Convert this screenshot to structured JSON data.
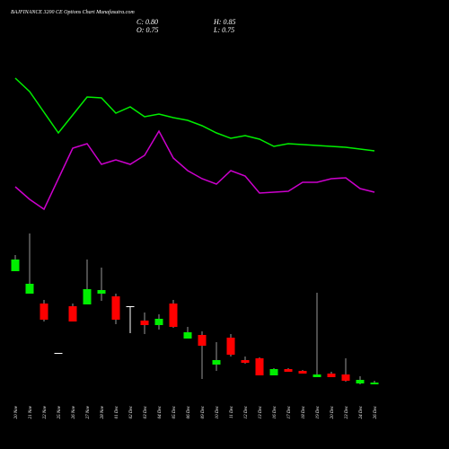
{
  "chart_data": {
    "type": "candlestick",
    "title": "BAJFINANCE 3200 CE Options Chart Munafasutra.com",
    "info": [
      "C: 0.80",
      "H: 0.85",
      "O: 0.75",
      "L: 0.75"
    ],
    "categories": [
      "20 Nov",
      "21 Nov",
      "22 Nov",
      "25 Nov",
      "26 Nov",
      "27 Nov",
      "28 Nov",
      "01 Dec",
      "02 Dec",
      "03 Dec",
      "04 Dec",
      "05 Dec",
      "06 Dec",
      "09 Dec",
      "10 Dec",
      "11 Dec",
      "12 Dec",
      "13 Dec",
      "16 Dec",
      "17 Dec",
      "18 Dec",
      "19 Dec",
      "20 Dec",
      "23 Dec",
      "24 Dec",
      "26 Dec"
    ],
    "open": [
      3.9,
      3.275,
      3.0,
      1.625,
      2.925,
      2.975,
      3.275,
      3.2,
      2.925,
      2.525,
      2.4,
      3.0,
      2.025,
      2.125,
      1.3,
      2.05,
      1.425,
      1.475,
      1.0,
      1.175,
      1.125,
      0.95,
      1.05,
      1.025,
      0.775,
      0.75
    ],
    "high": [
      4.35,
      4.95,
      3.1,
      1.625,
      3.0,
      4.225,
      4.0,
      3.275,
      2.925,
      2.75,
      2.7,
      3.1,
      2.35,
      2.225,
      1.925,
      2.15,
      1.525,
      1.5,
      1.2,
      1.2,
      1.15,
      3.3,
      1.1,
      1.475,
      0.975,
      0.85
    ],
    "low": [
      3.9,
      3.275,
      2.5,
      1.625,
      2.5,
      2.975,
      3.075,
      2.425,
      2.175,
      2.15,
      2.275,
      2.325,
      2.025,
      0.9,
      1.125,
      1.525,
      1.325,
      1.0,
      1.0,
      1.1,
      1.05,
      0.95,
      0.95,
      0.825,
      0.75,
      0.75
    ],
    "close": [
      4.225,
      3.55,
      2.55,
      1.625,
      2.5,
      3.4,
      3.375,
      2.55,
      2.925,
      2.4,
      2.575,
      2.35,
      2.2,
      1.825,
      1.425,
      1.575,
      1.35,
      1.0,
      1.175,
      1.1,
      1.05,
      1.025,
      0.95,
      0.85,
      0.875,
      0.8
    ],
    "up_color": "#00ee00",
    "down_color": "#ff0000",
    "flat_color": "#ffffff",
    "series": [
      {
        "color": "#00ee00",
        "values": [
          9.275,
          8.9,
          8.325,
          7.75,
          8.25,
          8.75,
          8.725,
          8.3,
          8.475,
          8.2,
          8.275,
          8.175,
          8.1,
          7.95,
          7.75,
          7.6,
          7.675,
          7.575,
          7.375,
          7.45,
          7.425,
          7.4,
          7.375,
          7.35,
          7.3,
          7.25
        ]
      },
      {
        "color": "#cc00cc",
        "values": [
          6.25,
          5.9,
          5.625,
          6.475,
          7.325,
          7.45,
          6.875,
          7.0,
          6.875,
          7.125,
          7.8,
          7.05,
          6.7,
          6.475,
          6.325,
          6.7,
          6.55,
          6.075,
          6.1,
          6.125,
          6.375,
          6.375,
          6.475,
          6.5,
          6.2,
          6.1
        ]
      }
    ],
    "ylim": [
      0.45,
      10.95
    ]
  }
}
